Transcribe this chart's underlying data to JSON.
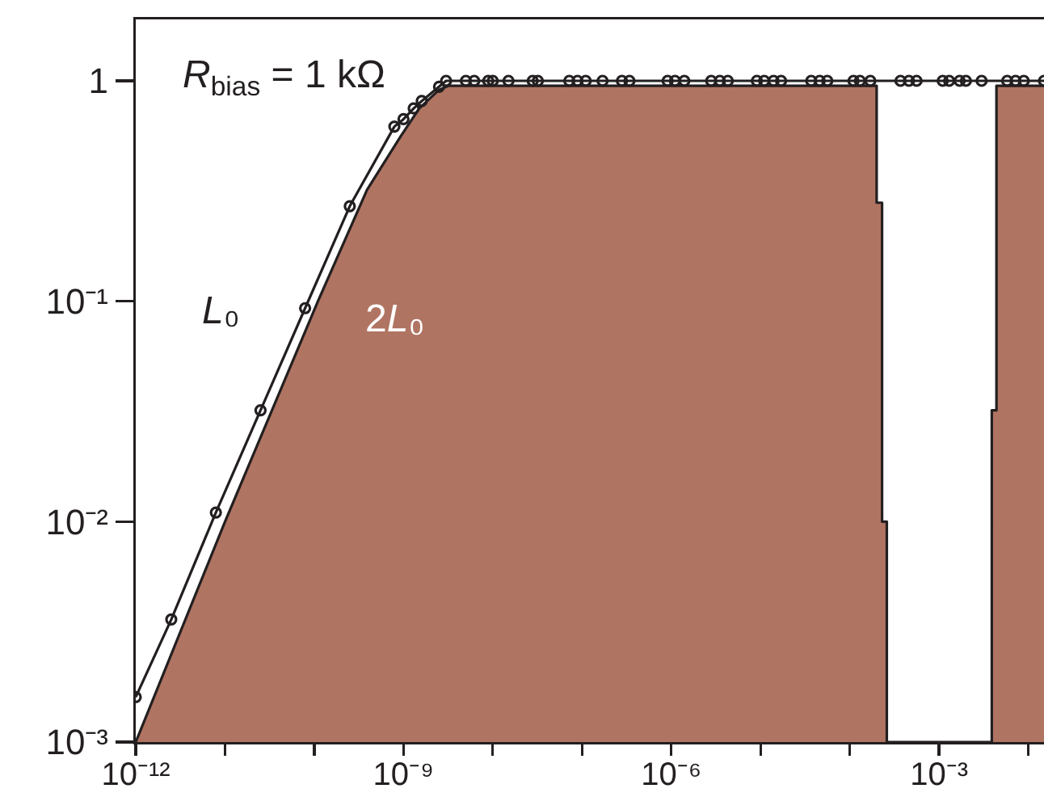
{
  "chart_data": {
    "type": "line",
    "annotations": [
      "R$_{bias}$ = 1 kΩ"
    ],
    "log": "xy",
    "xlim": [
      1e-12,
      0.015
    ],
    "xticks": [
      {
        "value": 1e-12,
        "label": "10⁻¹²"
      },
      {
        "value": 1e-11,
        "label": null
      },
      {
        "value": 1e-10,
        "label": null
      },
      {
        "value": 1e-09,
        "label": "10⁻⁹"
      },
      {
        "value": 1e-08,
        "label": null
      },
      {
        "value": 1e-07,
        "label": null
      },
      {
        "value": 1e-06,
        "label": "10⁻⁶"
      },
      {
        "value": 1e-05,
        "label": null
      },
      {
        "value": 0.0001,
        "label": null
      },
      {
        "value": 0.001,
        "label": "10⁻³"
      },
      {
        "value": 0.01,
        "label": null
      }
    ],
    "ylim": [
      0.001,
      1.9
    ],
    "yticks": [
      {
        "value": 0.001,
        "label": "10⁻³"
      },
      {
        "value": 0.01,
        "label": "10⁻²"
      },
      {
        "value": 0.1,
        "label": "10⁻¹"
      },
      1
    ],
    "series": [
      {
        "name": "L₀",
        "color": "#231f20",
        "marker": "circle",
        "x": [
          1e-12,
          2.5e-12,
          7.9e-12,
          2.5e-11,
          7.9e-11,
          2.5e-10,
          7.9e-10,
          1e-09,
          1.3e-09,
          1.6e-09,
          2.5e-09,
          3e-09,
          5e-09,
          6.2e-09,
          8.9e-09,
          1e-08,
          1.5e-08,
          2.8e-08,
          3.2e-08,
          7.2e-08,
          8.9e-08,
          1.1e-07,
          1.7e-07,
          2.8e-07,
          3.4e-07,
          9.1e-07,
          1.1e-06,
          1.4e-06,
          2.8e-06,
          3.5e-06,
          4.3e-06,
          9.1e-06,
          1.1e-05,
          1.4e-05,
          1.7e-05,
          3.7e-05,
          4.6e-05,
          5.6e-05,
          0.00011,
          0.00013,
          0.00017,
          0.00037,
          0.00046,
          0.00056,
          0.0011,
          0.0013,
          0.0017,
          0.002,
          0.003,
          0.0058,
          0.0072,
          0.0089,
          0.015
        ],
        "values": [
          0.0016,
          0.0036,
          0.011,
          0.032,
          0.093,
          0.27,
          0.62,
          0.67,
          0.75,
          0.81,
          0.94,
          1,
          1,
          1,
          1,
          1,
          1,
          1,
          1,
          1,
          1,
          1,
          1,
          1,
          1,
          1,
          1,
          1,
          1,
          1,
          1,
          1,
          1,
          1,
          1,
          1,
          1,
          1,
          1,
          1,
          1,
          1,
          1,
          1,
          1,
          1,
          1,
          1,
          1,
          1,
          1,
          1,
          1
        ]
      },
      {
        "name": "2L₀",
        "type": "area",
        "color": "#b07462",
        "x": [
          1e-12,
          1e-11,
          1.1e-10,
          3.9e-10,
          9.3e-10,
          1.5e-09,
          2.5e-09,
          3.2e-09,
          0.0002,
          0.0002,
          0.00023,
          0.00023,
          0.00026,
          0.00026,
          0.0039,
          0.0039,
          0.0044,
          0.0044,
          0.015
        ],
        "values": [
          0.001,
          0.01,
          0.1,
          0.32,
          0.56,
          0.75,
          0.91,
          0.95,
          0.95,
          0.28,
          0.28,
          0.01,
          0.01,
          0.001,
          0.001,
          0.032,
          0.032,
          0.95,
          0.95
        ]
      }
    ]
  }
}
